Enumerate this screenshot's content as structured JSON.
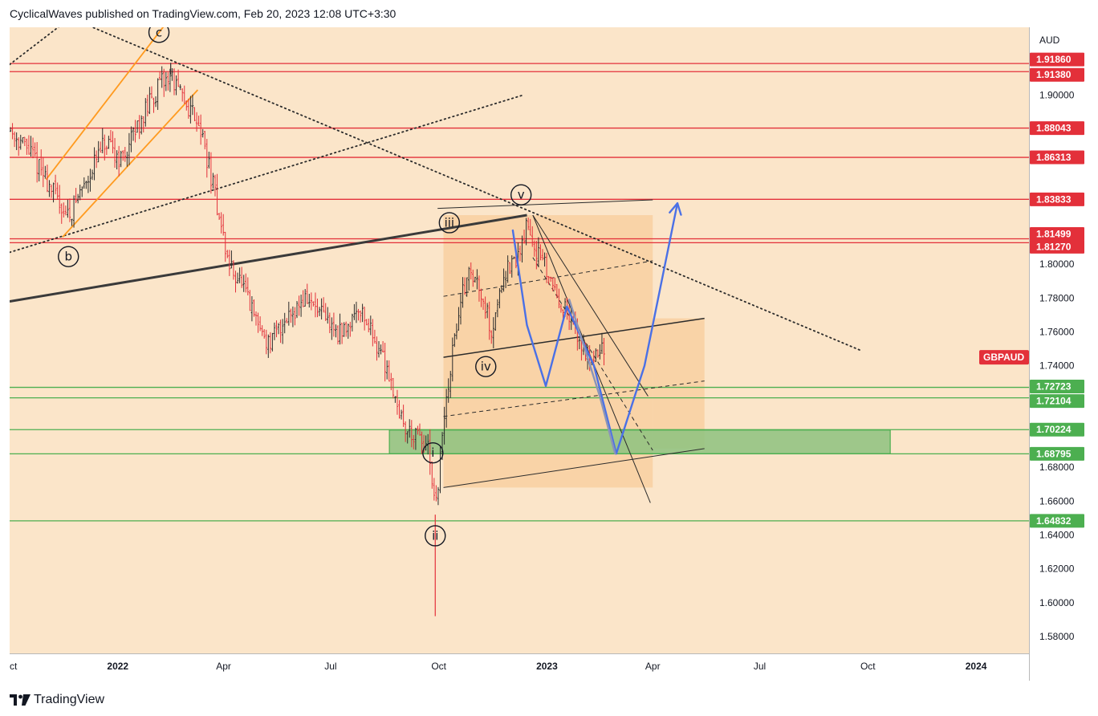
{
  "header": {
    "publisher_line": "CyclicalWaves published on TradingView.com, Feb 20, 2023 12:08 UTC+3:30"
  },
  "footer": {
    "brand": "TradingView",
    "logo_icon": "tradingview-logo-icon"
  },
  "colors": {
    "background": "#fbe5c9",
    "resistance": "#e3303a",
    "support": "#4caf50",
    "zone_fill": "#8dc27f",
    "channel_orange": "#ff9a1f",
    "projection_blue": "#4a70e6",
    "projection_gray": "#8a94b8",
    "candle_up": "#2b2b2b",
    "candle_down": "#e3303a",
    "box_fill": "#f7c58a"
  },
  "chart_data": {
    "type": "candlestick",
    "symbol": "GBPAUD",
    "currency": "AUD",
    "x_ticks": [
      "ct",
      "2022",
      "Apr",
      "Jul",
      "Oct",
      "2023",
      "Apr",
      "Jul",
      "Oct",
      "2024"
    ],
    "y_ticks": [
      "1.90000",
      "1.80000",
      "1.78000",
      "1.76000",
      "1.74000",
      "1.68000",
      "1.66000",
      "1.64000",
      "1.62000",
      "1.60000",
      "1.58000"
    ],
    "ylim": [
      1.57,
      1.94
    ],
    "xlim": [
      "2021-10-01",
      "2024-02-15"
    ],
    "horizontal_levels": [
      {
        "label": "1.91860",
        "value": 1.9186,
        "kind": "resistance"
      },
      {
        "label": "1.91380",
        "value": 1.9138,
        "kind": "resistance"
      },
      {
        "label": "1.88043",
        "value": 1.88043,
        "kind": "resistance"
      },
      {
        "label": "1.86313",
        "value": 1.86313,
        "kind": "resistance"
      },
      {
        "label": "1.83833",
        "value": 1.83833,
        "kind": "resistance"
      },
      {
        "label": "1.81499",
        "value": 1.81499,
        "kind": "resistance"
      },
      {
        "label": "1.81270",
        "value": 1.8127,
        "kind": "resistance"
      },
      {
        "label": "1.72723",
        "value": 1.72723,
        "kind": "support"
      },
      {
        "label": "1.72104",
        "value": 1.72104,
        "kind": "support"
      },
      {
        "label": "1.70224",
        "value": 1.70224,
        "kind": "support"
      },
      {
        "label": "1.68795",
        "value": 1.68795,
        "kind": "support"
      },
      {
        "label": "1.64832",
        "value": 1.64832,
        "kind": "support"
      }
    ],
    "symbol_label_value": 1.745,
    "support_zone": {
      "from": "2022-08-20",
      "to": "2023-10-20",
      "low": 1.688,
      "high": 1.702
    },
    "wave_labels": [
      {
        "text": "c",
        "date": "2022-02-05",
        "value": 1.937
      },
      {
        "text": "b",
        "date": "2021-11-20",
        "value": 1.8045
      },
      {
        "text": "iii",
        "date": "2022-10-10",
        "value": 1.8245
      },
      {
        "text": "v",
        "date": "2022-12-10",
        "value": 1.841
      },
      {
        "text": "iv",
        "date": "2022-11-10",
        "value": 1.7395
      },
      {
        "text": "i",
        "date": "2022-09-26",
        "value": 1.6885
      },
      {
        "text": "ii",
        "date": "2022-09-28",
        "value": 1.6395
      }
    ],
    "price_path": [
      [
        "2021-10-01",
        1.88
      ],
      [
        "2021-10-20",
        1.865
      ],
      [
        "2021-11-05",
        1.845
      ],
      [
        "2021-11-20",
        1.828
      ],
      [
        "2021-12-05",
        1.85
      ],
      [
        "2021-12-20",
        1.87
      ],
      [
        "2022-01-05",
        1.862
      ],
      [
        "2022-01-20",
        1.885
      ],
      [
        "2022-02-05",
        1.905
      ],
      [
        "2022-02-15",
        1.912
      ],
      [
        "2022-02-25",
        1.897
      ],
      [
        "2022-03-10",
        1.887
      ],
      [
        "2022-03-25",
        1.84
      ],
      [
        "2022-04-05",
        1.8
      ],
      [
        "2022-04-15",
        1.79
      ],
      [
        "2022-04-25",
        1.772
      ],
      [
        "2022-05-10",
        1.752
      ],
      [
        "2022-05-25",
        1.77
      ],
      [
        "2022-06-10",
        1.78
      ],
      [
        "2022-06-25",
        1.768
      ],
      [
        "2022-07-10",
        1.758
      ],
      [
        "2022-07-25",
        1.776
      ],
      [
        "2022-08-10",
        1.752
      ],
      [
        "2022-08-20",
        1.735
      ],
      [
        "2022-09-01",
        1.704
      ],
      [
        "2022-09-15",
        1.696
      ],
      [
        "2022-09-22",
        1.69
      ],
      [
        "2022-09-28",
        1.652
      ],
      [
        "2022-10-05",
        1.705
      ],
      [
        "2022-10-15",
        1.76
      ],
      [
        "2022-10-25",
        1.795
      ],
      [
        "2022-11-05",
        1.788
      ],
      [
        "2022-11-15",
        1.76
      ],
      [
        "2022-11-25",
        1.795
      ],
      [
        "2022-12-05",
        1.8
      ],
      [
        "2022-12-15",
        1.823
      ],
      [
        "2022-12-25",
        1.805
      ],
      [
        "2023-01-05",
        1.79
      ],
      [
        "2023-01-15",
        1.775
      ],
      [
        "2023-01-25",
        1.76
      ],
      [
        "2023-02-05",
        1.745
      ],
      [
        "2023-02-20",
        1.75
      ]
    ],
    "extreme_wicks": [
      {
        "date": "2022-09-28",
        "low": 1.592
      },
      {
        "date": "2022-02-15",
        "high": 1.919
      }
    ],
    "trend_lines": [
      {
        "name": "dotted-descending-trendline",
        "style": "dotted",
        "from": [
          "2021-10-10",
          1.958
        ],
        "to": [
          "2023-09-25",
          1.749
        ]
      },
      {
        "name": "dotted-upper-trendline",
        "style": "dotted",
        "from": [
          "2021-10-01",
          1.918
        ],
        "to": [
          "2021-11-30",
          1.95
        ]
      },
      {
        "name": "dotted-lower-trendline",
        "style": "dotted",
        "from": [
          "2021-10-01",
          1.807
        ],
        "to": [
          "2022-12-12",
          1.9
        ]
      },
      {
        "name": "thick-resistance-trendline",
        "style": "thick",
        "from": [
          "2021-10-01",
          1.778
        ],
        "to": [
          "2022-12-15",
          1.829
        ]
      },
      {
        "name": "orange-channel-upper",
        "style": "orange",
        "from": [
          "2021-11-01",
          1.85
        ],
        "to": [
          "2022-02-25",
          1.955
        ]
      },
      {
        "name": "orange-channel-lower",
        "style": "orange",
        "from": [
          "2021-11-15",
          1.816
        ],
        "to": [
          "2022-03-10",
          1.903
        ]
      },
      {
        "name": "falling-channel-upper",
        "style": "solid-thin",
        "from": [
          "2022-12-20",
          1.829
        ],
        "to": [
          "2023-03-28",
          1.722
        ]
      },
      {
        "name": "falling-channel-lower",
        "style": "solid-thin",
        "from": [
          "2022-12-20",
          1.829
        ],
        "to": [
          "2023-03-30",
          1.659
        ]
      },
      {
        "name": "falling-channel-mid",
        "style": "dashed",
        "from": [
          "2022-12-20",
          1.804
        ],
        "to": [
          "2023-04-01",
          1.69
        ]
      },
      {
        "name": "upper-parallel-top",
        "style": "solid-thin",
        "from": [
          "2022-09-30",
          1.833
        ],
        "to": [
          "2023-04-01",
          1.838
        ]
      },
      {
        "name": "upper-parallel-mid",
        "style": "dashed",
        "from": [
          "2022-10-05",
          1.781
        ],
        "to": [
          "2023-04-01",
          1.802
        ]
      },
      {
        "name": "upper-parallel-base",
        "style": "solid",
        "from": [
          "2022-10-05",
          1.745
        ],
        "to": [
          "2023-05-15",
          1.768
        ]
      },
      {
        "name": "lower-parallel-mid",
        "style": "dashed",
        "from": [
          "2022-10-05",
          1.71
        ],
        "to": [
          "2023-05-15",
          1.731
        ]
      },
      {
        "name": "lower-parallel-base",
        "style": "solid-thin",
        "from": [
          "2022-10-05",
          1.668
        ],
        "to": [
          "2023-05-15",
          1.691
        ]
      }
    ],
    "projection_boxes": [
      {
        "from": "2022-10-05",
        "to": "2023-04-01",
        "low": 1.668,
        "high": 1.829
      },
      {
        "from": "2023-04-01",
        "to": "2023-05-15",
        "low": 1.691,
        "high": 1.768
      }
    ],
    "projections": [
      {
        "name": "blue-projection",
        "points": [
          [
            "2022-12-03",
            1.82
          ],
          [
            "2022-12-15",
            1.764
          ],
          [
            "2022-12-31",
            1.728
          ],
          [
            "2023-01-18",
            1.775
          ],
          [
            "2023-02-10",
            1.74
          ],
          [
            "2023-03-01",
            1.688
          ],
          [
            "2023-03-25",
            1.74
          ],
          [
            "2023-04-22",
            1.836
          ]
        ],
        "arrow": true
      },
      {
        "name": "gray-projection",
        "points": [
          [
            "2023-01-20",
            1.779
          ],
          [
            "2023-02-15",
            1.722
          ],
          [
            "2023-02-28",
            1.688
          ]
        ],
        "arrow": false
      }
    ]
  }
}
